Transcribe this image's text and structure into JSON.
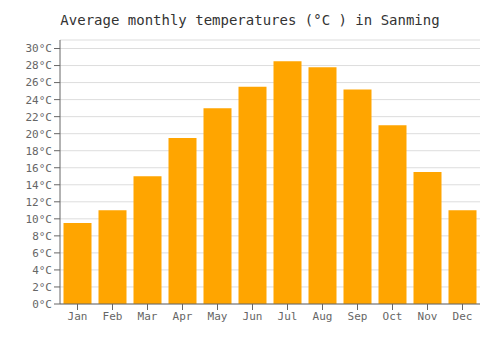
{
  "chart_data": {
    "type": "bar",
    "title": "Average monthly temperatures (°C ) in Sanming",
    "categories": [
      "Jan",
      "Feb",
      "Mar",
      "Apr",
      "May",
      "Jun",
      "Jul",
      "Aug",
      "Sep",
      "Oct",
      "Nov",
      "Dec"
    ],
    "values": [
      9.5,
      11.0,
      15.0,
      19.5,
      23.0,
      25.5,
      28.5,
      27.8,
      25.2,
      21.0,
      15.5,
      11.0
    ],
    "color": "#FFA500",
    "ylim": [
      0,
      31
    ],
    "yticks": [
      {
        "value": 0,
        "label": "0°C"
      },
      {
        "value": 2,
        "label": "2°C"
      },
      {
        "value": 4,
        "label": "4°C"
      },
      {
        "value": 6,
        "label": "6°C"
      },
      {
        "value": 8,
        "label": "8°C"
      },
      {
        "value": 10,
        "label": "10°C"
      },
      {
        "value": 12,
        "label": "12°C"
      },
      {
        "value": 14,
        "label": "14°C"
      },
      {
        "value": 16,
        "label": "16°C"
      },
      {
        "value": 18,
        "label": "18°C"
      },
      {
        "value": 20,
        "label": "20°C"
      },
      {
        "value": 22,
        "label": "22°C"
      },
      {
        "value": 24,
        "label": "24°C"
      },
      {
        "value": 26,
        "label": "26°C"
      },
      {
        "value": 28,
        "label": "28°C"
      },
      {
        "value": 30,
        "label": "30°C"
      }
    ],
    "grid": true
  }
}
